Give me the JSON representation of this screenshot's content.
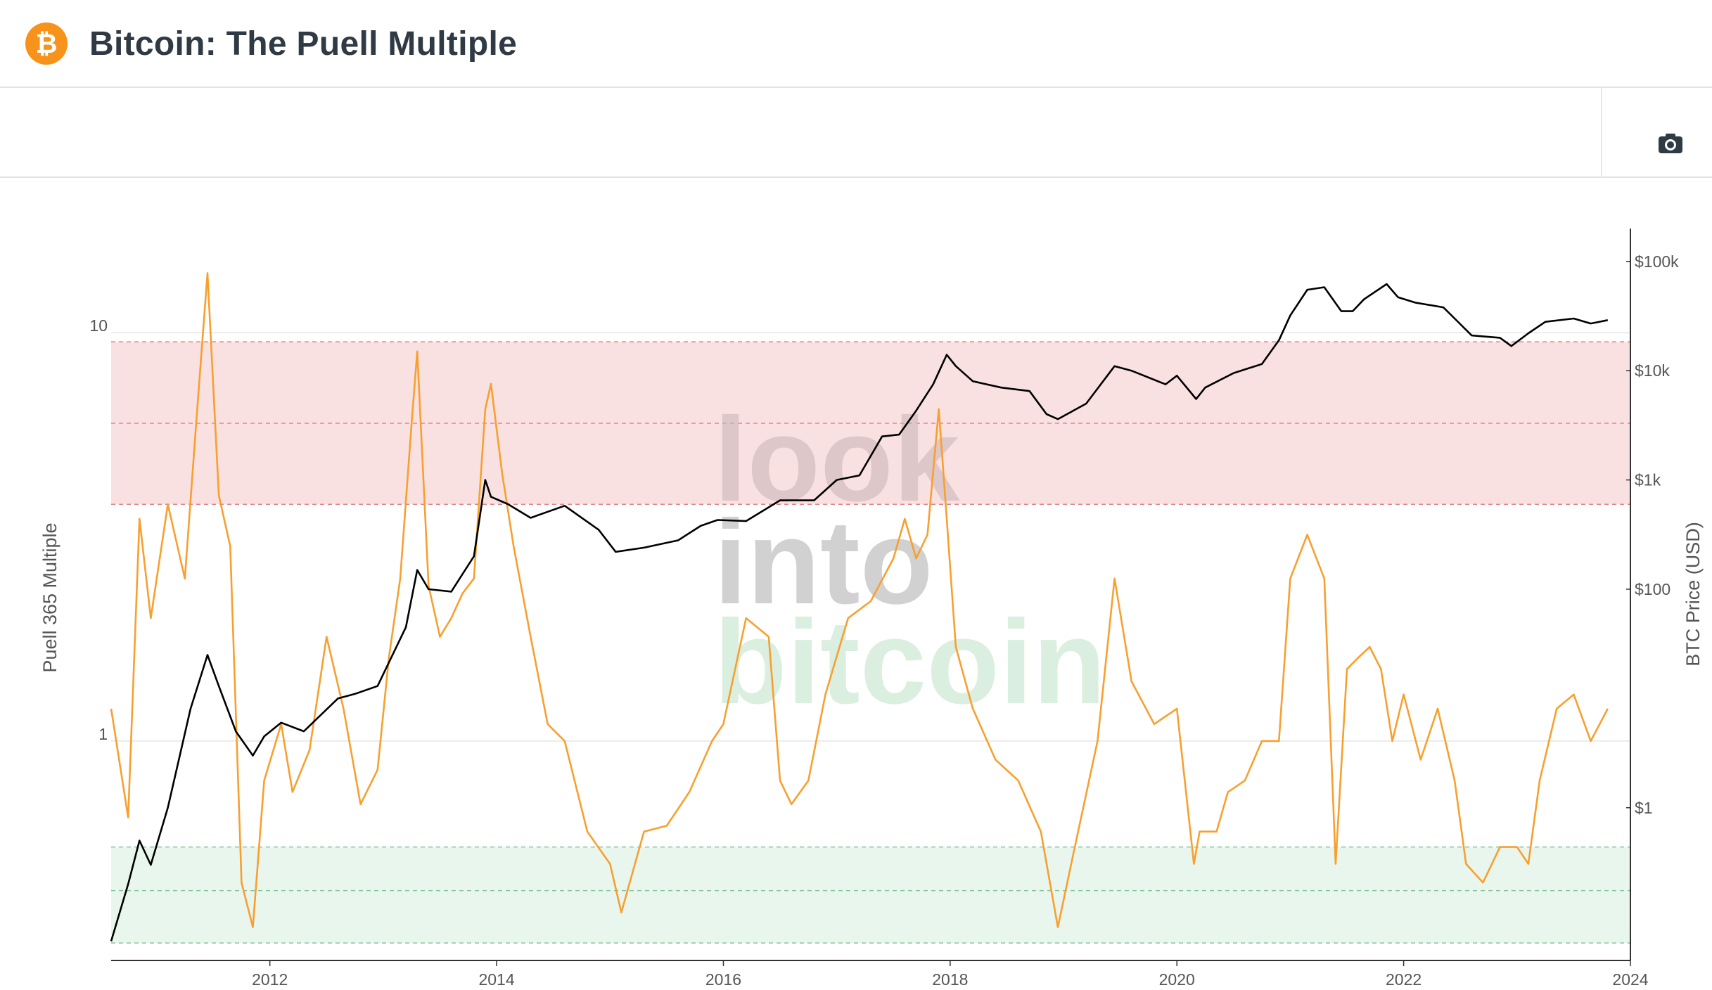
{
  "header": {
    "logo_symbol": "₿",
    "title": "Bitcoin: The Puell Multiple"
  },
  "toolbar": {
    "camera_icon": "camera-icon"
  },
  "watermark": {
    "line1": "look",
    "line2": "into",
    "line3": "bitcoin"
  },
  "colors": {
    "puell": "#f7a030",
    "price": "#000000",
    "red_band": "#f9e1e2",
    "green_band": "#e9f6ee",
    "brand": "#f7931a"
  },
  "chart_data": {
    "type": "line",
    "x_axis": {
      "range": [
        2010.6,
        2024.0
      ],
      "ticks": [
        "2012",
        "2014",
        "2016",
        "2018",
        "2020",
        "2022",
        "2024"
      ]
    },
    "y_left": {
      "title": "Puell 365 Multiple",
      "scale": "log",
      "range": [
        0.29,
        18
      ],
      "ticks": [
        "1",
        "10"
      ]
    },
    "y_right": {
      "title": "BTC Price (USD)",
      "scale": "log",
      "range": [
        0.04,
        200000
      ],
      "ticks": [
        "$1",
        "$100",
        "$1k",
        "$10k",
        "$100k"
      ]
    },
    "bands": [
      {
        "zone": "red",
        "from": 3.8,
        "to": 9.5,
        "dashed_lines": [
          3.8,
          6.0,
          9.5
        ]
      },
      {
        "zone": "green",
        "from": 0.32,
        "to": 0.55,
        "dashed_lines": [
          0.32,
          0.43,
          0.55
        ]
      }
    ],
    "series": [
      {
        "name": "Puell 365 Multiple",
        "axis": "left",
        "x": [
          2010.6,
          2010.75,
          2010.85,
          2010.95,
          2011.1,
          2011.25,
          2011.35,
          2011.45,
          2011.55,
          2011.65,
          2011.75,
          2011.85,
          2011.95,
          2012.1,
          2012.2,
          2012.35,
          2012.5,
          2012.65,
          2012.8,
          2012.95,
          2013.05,
          2013.15,
          2013.25,
          2013.3,
          2013.4,
          2013.5,
          2013.6,
          2013.7,
          2013.8,
          2013.9,
          2013.95,
          2014.05,
          2014.15,
          2014.3,
          2014.45,
          2014.6,
          2014.8,
          2015.0,
          2015.1,
          2015.3,
          2015.5,
          2015.7,
          2015.9,
          2016.0,
          2016.2,
          2016.4,
          2016.5,
          2016.6,
          2016.75,
          2016.9,
          2017.1,
          2017.3,
          2017.5,
          2017.6,
          2017.7,
          2017.8,
          2017.9,
          2017.97,
          2018.05,
          2018.2,
          2018.4,
          2018.6,
          2018.8,
          2018.95,
          2019.1,
          2019.3,
          2019.45,
          2019.6,
          2019.8,
          2020.0,
          2020.15,
          2020.2,
          2020.35,
          2020.45,
          2020.6,
          2020.75,
          2020.9,
          2021.0,
          2021.15,
          2021.3,
          2021.4,
          2021.5,
          2021.6,
          2021.7,
          2021.8,
          2021.9,
          2022.0,
          2022.15,
          2022.3,
          2022.45,
          2022.55,
          2022.7,
          2022.85,
          2023.0,
          2023.1,
          2023.2,
          2023.35,
          2023.5,
          2023.65,
          2023.8
        ],
        "y": [
          1.2,
          0.65,
          3.5,
          2.0,
          3.8,
          2.5,
          6.0,
          14.0,
          4.0,
          3.0,
          0.45,
          0.35,
          0.8,
          1.1,
          0.75,
          0.95,
          1.8,
          1.2,
          0.7,
          0.85,
          1.6,
          2.5,
          6.0,
          9.0,
          2.4,
          1.8,
          2.0,
          2.3,
          2.5,
          6.5,
          7.5,
          4.5,
          3.0,
          1.8,
          1.1,
          1.0,
          0.6,
          0.5,
          0.38,
          0.6,
          0.62,
          0.75,
          1.0,
          1.1,
          2.0,
          1.8,
          0.8,
          0.7,
          0.8,
          1.3,
          2.0,
          2.2,
          2.8,
          3.5,
          2.8,
          3.2,
          6.5,
          3.5,
          1.7,
          1.2,
          0.9,
          0.8,
          0.6,
          0.35,
          0.55,
          1.0,
          2.5,
          1.4,
          1.1,
          1.2,
          0.5,
          0.6,
          0.6,
          0.75,
          0.8,
          1.0,
          1.0,
          2.5,
          3.2,
          2.5,
          0.5,
          1.5,
          1.6,
          1.7,
          1.5,
          1.0,
          1.3,
          0.9,
          1.2,
          0.8,
          0.5,
          0.45,
          0.55,
          0.55,
          0.5,
          0.8,
          1.2,
          1.3,
          1.0,
          1.2
        ]
      },
      {
        "name": "BTC Price (USD)",
        "axis": "right",
        "x": [
          2010.6,
          2010.75,
          2010.85,
          2010.95,
          2011.1,
          2011.3,
          2011.45,
          2011.55,
          2011.7,
          2011.85,
          2011.95,
          2012.1,
          2012.3,
          2012.6,
          2012.75,
          2012.95,
          2013.2,
          2013.3,
          2013.4,
          2013.6,
          2013.8,
          2013.9,
          2013.95,
          2014.1,
          2014.3,
          2014.6,
          2014.9,
          2015.05,
          2015.3,
          2015.6,
          2015.8,
          2015.95,
          2016.2,
          2016.5,
          2016.8,
          2017.0,
          2017.2,
          2017.4,
          2017.55,
          2017.7,
          2017.85,
          2017.97,
          2018.05,
          2018.2,
          2018.45,
          2018.7,
          2018.85,
          2018.95,
          2019.2,
          2019.45,
          2019.6,
          2019.9,
          2020.0,
          2020.17,
          2020.25,
          2020.5,
          2020.75,
          2020.9,
          2021.0,
          2021.15,
          2021.3,
          2021.45,
          2021.55,
          2021.65,
          2021.85,
          2021.95,
          2022.1,
          2022.35,
          2022.45,
          2022.6,
          2022.85,
          2022.95,
          2023.1,
          2023.25,
          2023.5,
          2023.65,
          2023.8
        ],
        "y": [
          0.06,
          0.2,
          0.5,
          0.3,
          1.0,
          8.0,
          25.0,
          13.0,
          5.0,
          3.0,
          4.5,
          6.0,
          5.0,
          10.0,
          11.0,
          13.0,
          45.0,
          150.0,
          100.0,
          95.0,
          200.0,
          1000.0,
          700.0,
          600.0,
          450.0,
          580.0,
          350.0,
          220.0,
          240.0,
          280.0,
          380.0,
          430.0,
          420.0,
          650.0,
          650.0,
          1000.0,
          1100.0,
          2500.0,
          2600.0,
          4300.0,
          7500.0,
          14000.0,
          11000.0,
          8000.0,
          7000.0,
          6500.0,
          4000.0,
          3600.0,
          5000.0,
          11000.0,
          10000.0,
          7500.0,
          9000.0,
          5500.0,
          7000.0,
          9500.0,
          11500.0,
          19000.0,
          32000.0,
          55000.0,
          58000.0,
          35000.0,
          35000.0,
          45000.0,
          62000.0,
          47000.0,
          42000.0,
          38000.0,
          30000.0,
          21000.0,
          20000.0,
          16800.0,
          22000.0,
          28000.0,
          30000.0,
          27000.0,
          29000.0
        ]
      }
    ]
  }
}
